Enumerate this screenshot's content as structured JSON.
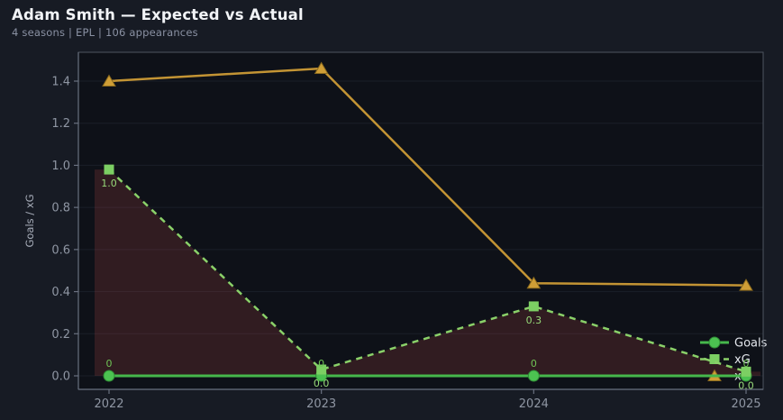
{
  "header": {
    "title": "Adam Smith — Expected vs Actual",
    "subtitle": "4 seasons | EPL | 106 appearances"
  },
  "colors": {
    "page_bg": "#171b24",
    "plot_bg": "#0e1118",
    "grid": "#1a1f29",
    "spine": "#4e5560",
    "spine_strong": "#6a7280",
    "tick_mark": "#6a7180",
    "tick_text": "#8f96a3",
    "axis_label_text": "#a7adb9",
    "legend_text": "#e3e6ec",
    "title_text": "#f2f4f7",
    "subtitle_text": "#8a91a3",
    "area_fill": "rgba(178,70,70,0.22)"
  },
  "chart_data": {
    "type": "line",
    "title": "Adam Smith — Expected vs Actual",
    "xlabel": "",
    "ylabel": "Goals / xG",
    "x_categories": [
      "2022",
      "2023",
      "2024",
      "2025"
    ],
    "ylim": [
      0,
      1.5
    ],
    "yticks": [
      0.0,
      0.2,
      0.4,
      0.6,
      0.8,
      1.0,
      1.2,
      1.4
    ],
    "ytick_labels": [
      "0.0",
      "0.2",
      "0.4",
      "0.6",
      "0.8",
      "1.0",
      "1.2",
      "1.4"
    ],
    "grid": "horizontal",
    "legend": [
      "Goals",
      "xG",
      "xA"
    ],
    "legend_position": "lower right",
    "series": [
      {
        "name": "Goals",
        "values": [
          0,
          0,
          0,
          0
        ],
        "point_labels": [
          "0",
          "0",
          "0",
          "0"
        ],
        "label_position": "above",
        "label_color": "#6fc355",
        "color": "#46b84c",
        "marker": "circle",
        "marker_color": "#4cc251",
        "marker_edge": "#2f8a35",
        "dash": "",
        "width": 3,
        "area_fill": false
      },
      {
        "name": "xG",
        "values": [
          0.98,
          0.03,
          0.33,
          0.02
        ],
        "point_labels": [
          "1.0",
          "0.0",
          "0.3",
          "0.0"
        ],
        "label_position": "below",
        "label_color": "#97da79",
        "color": "#8ad169",
        "marker": "square",
        "marker_color": "#7ccf63",
        "marker_edge": "",
        "dash": "7,6",
        "width": 2.5,
        "area_fill": true
      },
      {
        "name": "xA",
        "values": [
          1.4,
          1.46,
          0.44,
          0.43
        ],
        "point_labels": [],
        "label_position": "below",
        "label_color": "#c39434",
        "color": "#c39434",
        "marker": "triangle",
        "marker_color": "#cf9e36",
        "marker_edge": "#8a6a1e",
        "dash": "",
        "width": 2.5,
        "area_fill": false
      }
    ]
  }
}
